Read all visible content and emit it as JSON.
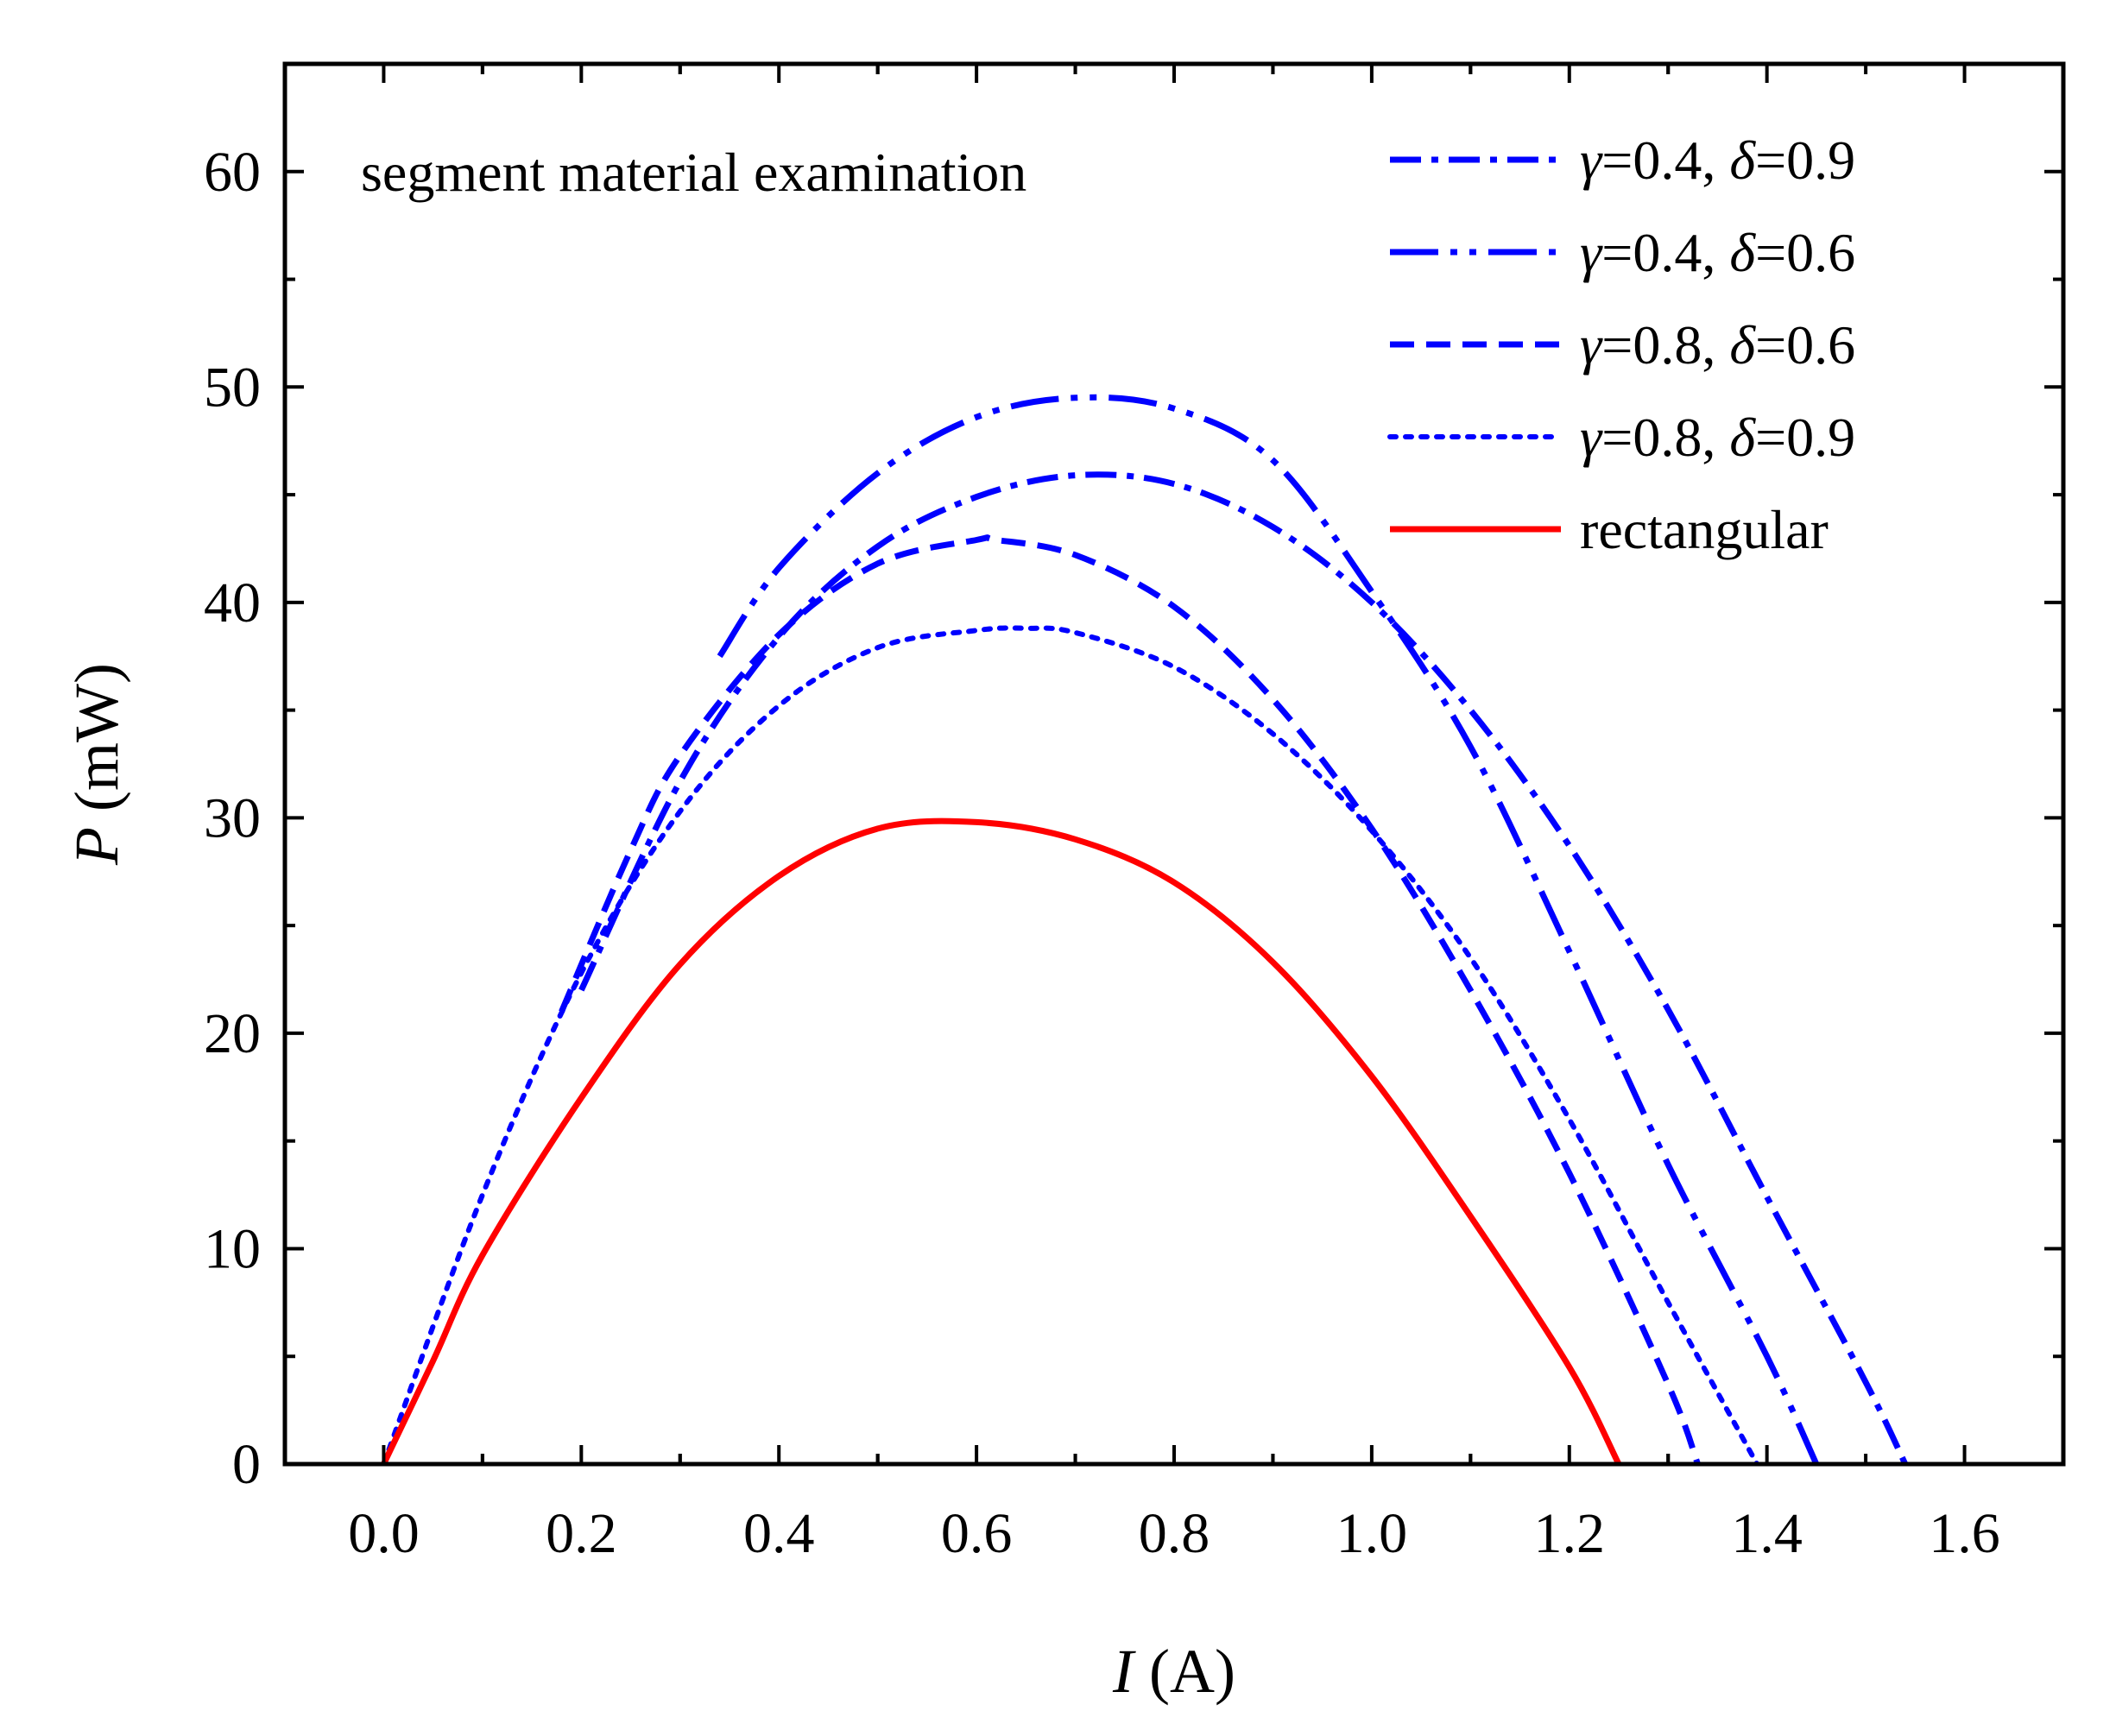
{
  "chart_data": {
    "type": "line",
    "title": "",
    "annotation": "segment material examination",
    "xlabel": {
      "symbol": "I",
      "unit": "(A)"
    },
    "ylabel": {
      "symbol": "P",
      "unit": "(mW)"
    },
    "xlim": [
      -0.1,
      1.7
    ],
    "ylim": [
      0,
      65
    ],
    "xticks": [
      0.0,
      0.2,
      0.4,
      0.6,
      0.8,
      1.0,
      1.2,
      1.4,
      1.6
    ],
    "xtick_labels": [
      "0.0",
      "0.2",
      "0.4",
      "0.6",
      "0.8",
      "1.0",
      "1.2",
      "1.4",
      "1.6"
    ],
    "yticks": [
      0,
      10,
      20,
      30,
      40,
      50,
      60
    ],
    "ytick_labels": [
      "0",
      "10",
      "20",
      "30",
      "40",
      "50",
      "60"
    ],
    "grid": false,
    "legend_position": "top-right",
    "series": [
      {
        "name": "γ=0.4, δ=0.9",
        "label_parts": {
          "g": "γ",
          "gv": "=0.4, ",
          "d": "δ",
          "dv": "=0.9"
        },
        "color": "#0000ff",
        "style": "dash-dot",
        "x": [
          0.2,
          0.3,
          0.4,
          0.5,
          0.6,
          0.7,
          0.8,
          0.9,
          1.0,
          1.1,
          1.2,
          1.3,
          1.4,
          1.5,
          1.54
        ],
        "y": [
          22.0,
          31.7,
          38.4,
          42.6,
          44.9,
          45.9,
          45.5,
          43.5,
          40.0,
          35.0,
          28.7,
          21.1,
          12.4,
          3.8,
          0.0
        ]
      },
      {
        "name": "γ=0.4, δ=0.6",
        "label_parts": {
          "g": "γ",
          "gv": "=0.4, ",
          "d": "δ",
          "dv": "=0.6"
        },
        "color": "#0000ff",
        "style": "dash-dot-dot",
        "x": [
          0.34,
          0.4,
          0.5,
          0.6,
          0.7,
          0.8,
          0.9,
          1.0,
          1.1,
          1.2,
          1.3,
          1.4,
          1.45
        ],
        "y": [
          37.5,
          41.6,
          46.0,
          48.6,
          49.5,
          49.0,
          46.6,
          40.5,
          33.3,
          23.8,
          13.9,
          5.0,
          0.0
        ]
      },
      {
        "name": "γ=0.8, δ=0.6",
        "label_parts": {
          "g": "γ",
          "gv": "=0.8, ",
          "d": "δ",
          "dv": "=0.6"
        },
        "color": "#0000ff",
        "style": "dash",
        "x": [
          0.18,
          0.25,
          0.3,
          0.4,
          0.5,
          0.6,
          0.62,
          0.7,
          0.8,
          0.9,
          1.0,
          1.1,
          1.2,
          1.3,
          1.33
        ],
        "y": [
          21.0,
          28.5,
          32.9,
          38.5,
          41.8,
          42.9,
          42.9,
          42.2,
          39.8,
          35.5,
          29.5,
          22.0,
          13.5,
          3.7,
          0.0
        ]
      },
      {
        "name": "γ=0.8, δ=0.9",
        "label_parts": {
          "g": "γ",
          "gv": "=0.8, ",
          "d": "δ",
          "dv": "=0.9"
        },
        "color": "#0000ff",
        "style": "dot",
        "x": [
          0.0,
          0.1,
          0.2,
          0.3,
          0.4,
          0.5,
          0.6,
          0.65,
          0.7,
          0.8,
          0.9,
          1.0,
          1.1,
          1.2,
          1.3,
          1.39
        ],
        "y": [
          0.0,
          12.5,
          22.8,
          30.3,
          35.2,
          37.9,
          38.7,
          38.8,
          38.6,
          37.0,
          33.9,
          29.4,
          23.5,
          16.0,
          7.5,
          0.0
        ]
      },
      {
        "name": "rectangular",
        "label_parts": {
          "g": "",
          "gv": "rectangular",
          "d": "",
          "dv": ""
        },
        "color": "#ff0000",
        "style": "solid",
        "x": [
          0.0,
          0.05,
          0.1,
          0.2,
          0.3,
          0.4,
          0.5,
          0.6,
          0.7,
          0.8,
          0.9,
          1.0,
          1.1,
          1.2,
          1.25
        ],
        "y": [
          0.0,
          4.8,
          9.7,
          17.0,
          23.2,
          27.3,
          29.5,
          29.8,
          29.0,
          27.0,
          23.3,
          18.0,
          11.5,
          4.5,
          0.0
        ]
      }
    ]
  }
}
